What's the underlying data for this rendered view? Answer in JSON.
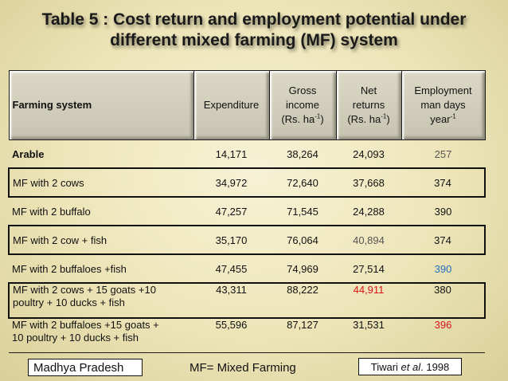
{
  "title": {
    "line1": "Table 5 : Cost return and employment potential under",
    "line2": "different mixed farming (MF) system"
  },
  "headers": {
    "farming_system": "Farming system",
    "expenditure": "Expenditure",
    "gross_income": {
      "line1": "Gross",
      "line2": "income",
      "line3_pre": "(Rs. ha",
      "line3_sup": "-1",
      "line3_post": ")"
    },
    "net_returns": {
      "line1": "Net",
      "line2": "returns",
      "line3_pre": "(Rs. ha",
      "line3_sup": "-1",
      "line3_post": ")"
    },
    "employment": {
      "line1": "Employment",
      "line2": "man days",
      "line3_pre": "year",
      "line3_sup": "-1"
    }
  },
  "colors": {
    "text": "#111111",
    "grey_value": "#555555",
    "blue_value": "#1f6fbf",
    "red_value": "#d8141a"
  },
  "rows": [
    {
      "system_line1": "Arable",
      "system_line2": "",
      "expenditure": "14,171",
      "gross": "38,264",
      "net": "24,093",
      "employment": "257",
      "net_color": "#111111",
      "emp_color": "#555555"
    },
    {
      "system_line1": "MF with 2 cows",
      "system_line2": "",
      "expenditure": "34,972",
      "gross": "72,640",
      "net": "37,668",
      "employment": "374",
      "net_color": "#111111",
      "emp_color": "#111111"
    },
    {
      "system_line1": "MF with 2 buffalo",
      "system_line2": "",
      "expenditure": "47,257",
      "gross": "71,545",
      "net": "24,288",
      "employment": "390",
      "net_color": "#111111",
      "emp_color": "#111111"
    },
    {
      "system_line1": "MF with 2 cow + fish",
      "system_line2": "",
      "expenditure": "35,170",
      "gross": "76,064",
      "net": "40,894",
      "employment": "374",
      "net_color": "#555555",
      "emp_color": "#111111"
    },
    {
      "system_line1": "MF with 2 buffaloes +fish",
      "system_line2": "",
      "expenditure": "47,455",
      "gross": "74,969",
      "net": "27,514",
      "employment": "390",
      "net_color": "#111111",
      "emp_color": "#1f6fbf"
    },
    {
      "system_line1": "MF with 2 cows + 15 goats +10",
      "system_line2": "poultry + 10 ducks + fish",
      "expenditure": "43,311",
      "gross": "88,222",
      "net": "44,911",
      "employment": "380",
      "net_color": "#d8141a",
      "emp_color": "#111111"
    },
    {
      "system_line1": "MF with 2 buffaloes +15 goats +",
      "system_line2": "10 poultry + 10 ducks + fish",
      "expenditure": "55,596",
      "gross": "87,127",
      "net": "31,531",
      "employment": "396",
      "net_color": "#111111",
      "emp_color": "#d8141a"
    }
  ],
  "footer": {
    "region": "Madhya Pradesh",
    "legend": "MF= Mixed Farming",
    "citation_pre": "Tiwari ",
    "citation_italic": "et al",
    "citation_post": ". 1998"
  }
}
